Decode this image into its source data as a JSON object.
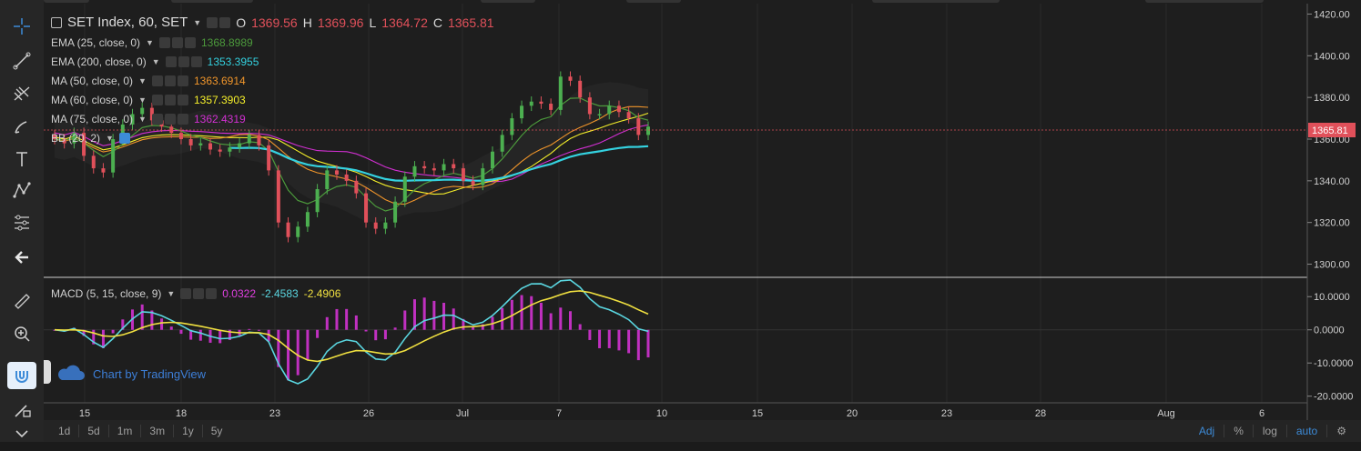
{
  "header": {
    "symbol": "SET Index, 60, SET",
    "open_label": "O",
    "open": "1369.56",
    "high_label": "H",
    "high": "1369.96",
    "low_label": "L",
    "low": "1364.72",
    "close_label": "C",
    "close": "1365.81"
  },
  "indicators": [
    {
      "name": "EMA (25, close, 0)",
      "value": "1368.8989",
      "color": "#4c9a3c"
    },
    {
      "name": "EMA (200, close, 0)",
      "value": "1353.3955",
      "color": "#34d2e0"
    },
    {
      "name": "MA (50, close, 0)",
      "value": "1363.6914",
      "color": "#f0952a"
    },
    {
      "name": "MA (60, close, 0)",
      "value": "1357.3903",
      "color": "#f5ef2a"
    },
    {
      "name": "MA (75, close, 0)",
      "value": "1362.4319",
      "color": "#d22fd2"
    },
    {
      "name": "BB (20, 2)",
      "value": "",
      "color": "#ffffff"
    }
  ],
  "macd": {
    "name": "MACD (5, 15, close, 9)",
    "values": [
      "0.0322",
      "-2.4583",
      "-2.4906"
    ],
    "colors": [
      "#e040e0",
      "#5ad6e0",
      "#f0e040"
    ]
  },
  "price_axis": {
    "ticks": [
      "1420.00",
      "1400.00",
      "1380.00",
      "1360.00",
      "1340.00",
      "1320.00",
      "1300.00"
    ],
    "current": "1365.81"
  },
  "macd_axis": {
    "ticks": [
      "10.0000",
      "0.0000",
      "-10.0000",
      "-20.0000"
    ]
  },
  "time_axis": {
    "ticks": [
      "15",
      "18",
      "23",
      "26",
      "Jul",
      "7",
      "10",
      "15",
      "20",
      "23",
      "28",
      "Aug",
      "6"
    ]
  },
  "watermark": "Chart by TradingView",
  "bottom_bar": {
    "ranges": [
      "1d",
      "5d",
      "1m",
      "3m",
      "1y",
      "5y"
    ],
    "right": [
      "Adj",
      "%",
      "log",
      "auto"
    ]
  },
  "chart_data": {
    "type": "line",
    "title": "SET Index, 60, SET",
    "ylim": [
      1295,
      1425
    ],
    "candles_close_approx": [
      1360,
      1358,
      1363,
      1352,
      1346,
      1344,
      1360,
      1367,
      1372,
      1375,
      1369,
      1366,
      1363,
      1360,
      1357,
      1358,
      1355,
      1354,
      1356,
      1358,
      1362,
      1357,
      1345,
      1320,
      1313,
      1318,
      1325,
      1336,
      1345,
      1343,
      1340,
      1334,
      1320,
      1317,
      1320,
      1330,
      1342,
      1347,
      1346,
      1345,
      1348,
      1346,
      1340,
      1338,
      1346,
      1354,
      1362,
      1370,
      1376,
      1378,
      1377,
      1374,
      1390,
      1388,
      1380,
      1372,
      1372,
      1376,
      1373,
      1370,
      1362,
      1366
    ],
    "macd_ylim": [
      -22,
      15
    ]
  }
}
